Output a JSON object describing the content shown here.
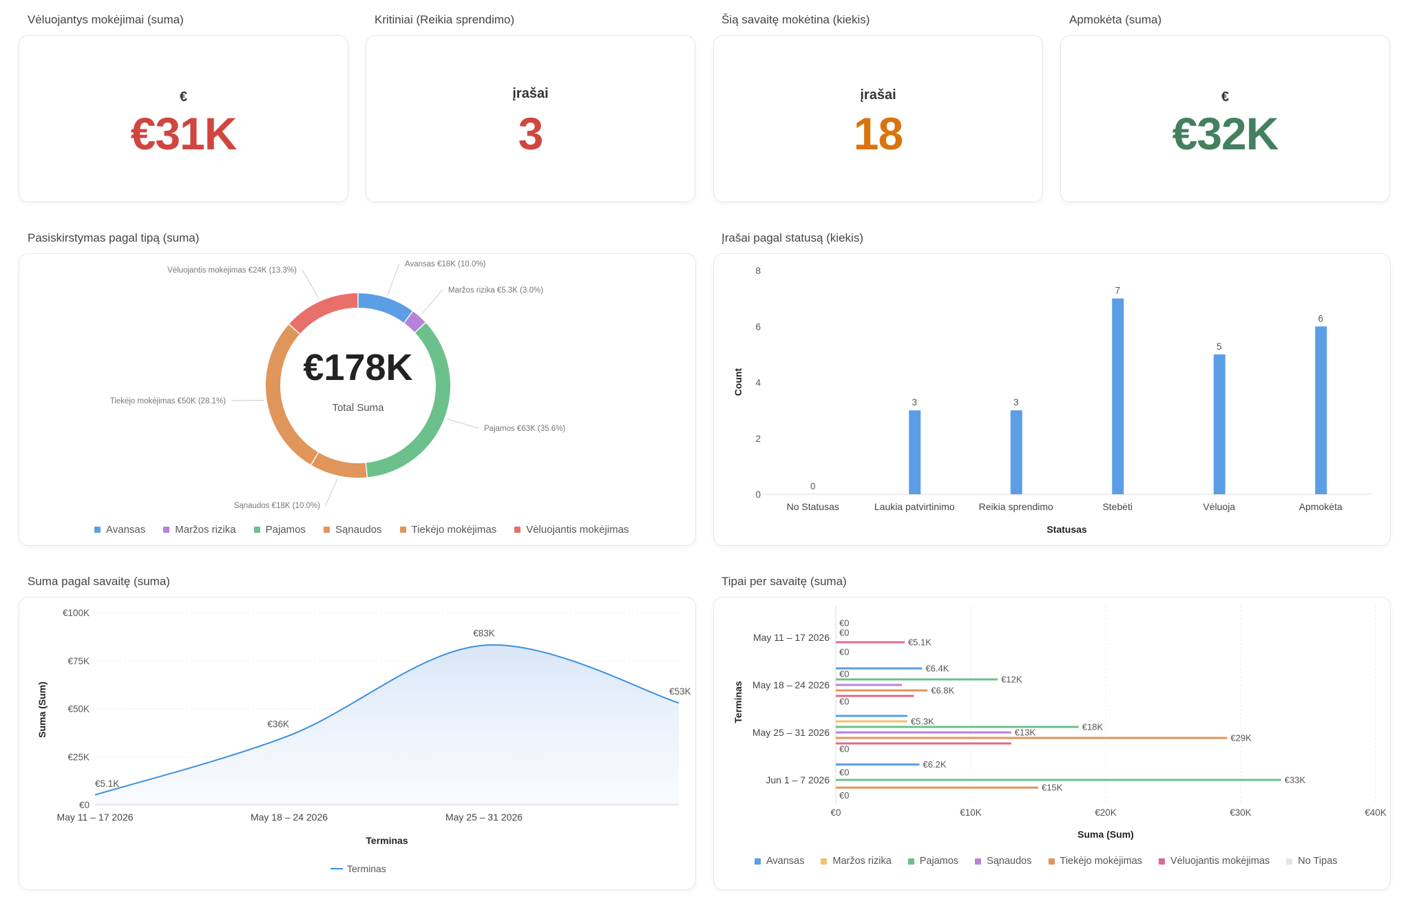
{
  "kpis": [
    {
      "title": "Vėluojantys mokėjimai (suma)",
      "unit": "€",
      "value": "€31K",
      "color": "#d0463f"
    },
    {
      "title": "Kritiniai (Reikia sprendimo)",
      "unit": "įrašai",
      "value": "3",
      "color": "#d0463f"
    },
    {
      "title": "Šią savaitę mokėtina (kiekis)",
      "unit": "įrašai",
      "value": "18",
      "color": "#d9730d"
    },
    {
      "title": "Apmokėta (suma)",
      "unit": "€",
      "value": "€32K",
      "color": "#43805f"
    }
  ],
  "donut": {
    "panel_title": "Pasiskirstymas pagal tipą (suma)",
    "center_value": "€178K",
    "center_label": "Total Suma",
    "slice_labels": [
      "Avansas  €18K (10.0%)",
      "Maržos rizika  €5.3K (3.0%)",
      "Pajamos  €63K (35.6%)",
      "Sąnaudos  €18K (10.0%)",
      "Tiekėjo mokėjimas  €50K (28.1%)",
      "Vėluojantis mokėjimas  €24K (13.3%)"
    ],
    "legend": [
      "Avansas",
      "Maržos rizika",
      "Pajamos",
      "Sąnaudos",
      "Tiekėjo mokėjimas",
      "Vėluojantis mokėjimas"
    ]
  },
  "bar": {
    "panel_title": "Įrašai pagal statusą (kiekis)",
    "ytick_labels": [
      "0",
      "2",
      "4",
      "6",
      "8"
    ]
  },
  "line": {
    "panel_title": "Suma pagal savaitę (suma)",
    "point_labels": [
      "€5.1K",
      "€36K",
      "€83K",
      "€53K"
    ],
    "ytick_labels": [
      "€0",
      "€25K",
      "€50K",
      "€75K",
      "€100K"
    ],
    "legend_label": "Terminas"
  },
  "hbar": {
    "panel_title": "Tipai per savaitę (suma)",
    "xtick_labels": [
      "€0",
      "€10K",
      "€20K",
      "€30K",
      "€40K"
    ],
    "legend": [
      "Avansas",
      "Maržos rizika",
      "Pajamos",
      "Sąnaudos",
      "Tiekėjo mokėjimas",
      "Vėluojantis mokėjimas",
      "No Tipas"
    ]
  },
  "colors": {
    "Avansas": "#5b9ee6",
    "Maržos rizika": "#b783d8",
    "Pajamos": "#6cc08b",
    "Sąnaudos": "#e0955a",
    "Tiekėjo mokėjimas": "#e0955a",
    "Vėluojantis mokėjimas": "#e9706a",
    "bar": "#5b9ee6",
    "line": "#3b8fde"
  },
  "chart_data": [
    {
      "type": "pie",
      "categories": [
        "Avansas",
        "Maržos rizika",
        "Pajamos",
        "Sąnaudos",
        "Tiekėjo mokėjimas",
        "Vėluojantis mokėjimas"
      ],
      "values": [
        18000,
        5300,
        63000,
        18000,
        50000,
        24000
      ],
      "percent": [
        10.0,
        3.0,
        35.6,
        10.0,
        28.1,
        13.3
      ],
      "title": "Pasiskirstymas pagal tipą (suma)",
      "legend": "bottom"
    },
    {
      "type": "bar",
      "categories": [
        "No Statusas",
        "Laukia patvirtinimo",
        "Reikia sprendimo",
        "Stebėti",
        "Vėluoja",
        "Apmokėta"
      ],
      "values": [
        0,
        3,
        3,
        7,
        5,
        6
      ],
      "title": "Įrašai pagal statusą (kiekis)",
      "xlabel": "Statusas",
      "ylabel": "Count",
      "ylim": [
        0,
        8
      ]
    },
    {
      "type": "area",
      "categories": [
        "May 11 – 17 2026",
        "May 18 – 24 2026",
        "May 25 – 31 2026",
        ""
      ],
      "series": [
        {
          "name": "Terminas",
          "values": [
            5100,
            36000,
            83000,
            53000
          ]
        }
      ],
      "title": "Suma pagal savaitę (suma)",
      "xlabel": "Terminas",
      "ylabel": "Suma (Sum)",
      "ylim": [
        0,
        100000
      ],
      "legend": "bottom"
    },
    {
      "type": "bar",
      "orientation": "horizontal",
      "title": "Tipai per savaitę (suma)",
      "xlabel": "Suma (Sum)",
      "ylabel": "Terminas",
      "xlim": [
        0,
        40000
      ],
      "legend": "bottom",
      "groups": [
        {
          "week": "May 11 – 17 2026",
          "bars": [
            {
              "type": "Avansas",
              "value": 0,
              "label": "€0"
            },
            {
              "type": "Maržos rizika",
              "value": 0,
              "label": "€0"
            },
            {
              "type": "Vėluojantis mokėjimas",
              "value": 5100,
              "label": "€5.1K"
            },
            {
              "type": "No Tipas",
              "value": 0,
              "label": "€0"
            }
          ]
        },
        {
          "week": "May 18 – 24 2026",
          "bars": [
            {
              "type": "Avansas",
              "value": 6400,
              "label": "€6.4K"
            },
            {
              "type": "Maržos rizika",
              "value": 0,
              "label": "€0"
            },
            {
              "type": "Pajamos",
              "value": 12000,
              "label": "€12K"
            },
            {
              "type": "Sąnaudos",
              "value": 4900,
              "label": ""
            },
            {
              "type": "Tiekėjo mokėjimas",
              "value": 6800,
              "label": "€6.8K"
            },
            {
              "type": "Vėluojantis mokėjimas",
              "value": 5800,
              "label": ""
            },
            {
              "type": "No Tipas",
              "value": 0,
              "label": "€0"
            }
          ]
        },
        {
          "week": "May 25 – 31 2026",
          "bars": [
            {
              "type": "Avansas",
              "value": 5300,
              "label": ""
            },
            {
              "type": "Maržos rizika",
              "value": 5300,
              "label": "€5.3K"
            },
            {
              "type": "Pajamos",
              "value": 18000,
              "label": "€18K"
            },
            {
              "type": "Sąnaudos",
              "value": 13000,
              "label": "€13K"
            },
            {
              "type": "Tiekėjo mokėjimas",
              "value": 29000,
              "label": "€29K"
            },
            {
              "type": "Vėluojantis mokėjimas",
              "value": 13000,
              "label": ""
            },
            {
              "type": "No Tipas",
              "value": 0,
              "label": "€0"
            }
          ]
        },
        {
          "week": "Jun 1 – 7 2026",
          "bars": [
            {
              "type": "Avansas",
              "value": 6200,
              "label": "€6.2K"
            },
            {
              "type": "Maržos rizika",
              "value": 0,
              "label": "€0"
            },
            {
              "type": "Pajamos",
              "value": 33000,
              "label": "€33K"
            },
            {
              "type": "Tiekėjo mokėjimas",
              "value": 15000,
              "label": "€15K"
            },
            {
              "type": "No Tipas",
              "value": 0,
              "label": "€0"
            }
          ]
        }
      ]
    }
  ]
}
